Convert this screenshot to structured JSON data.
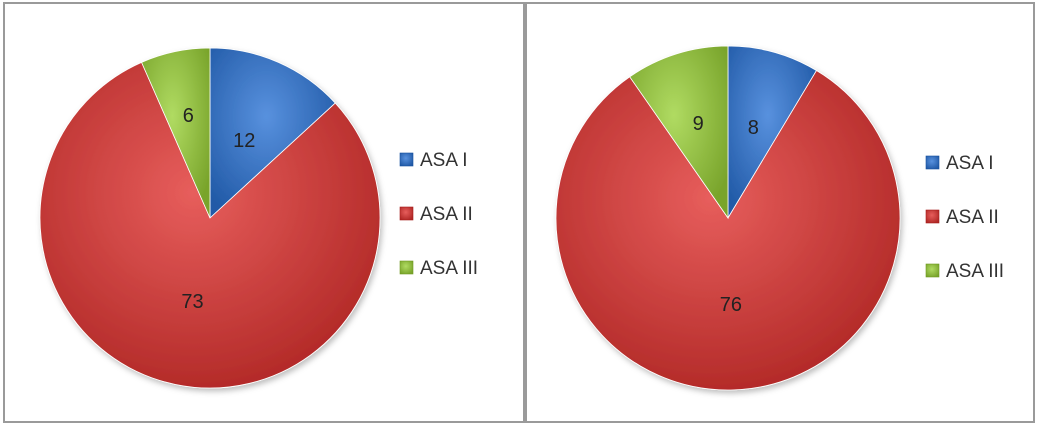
{
  "chart_data": [
    {
      "type": "pie",
      "title": "",
      "categories": [
        "ASA I",
        "ASA II",
        "ASA III"
      ],
      "values": [
        12,
        73,
        6
      ],
      "data_labels": [
        "12",
        "73",
        "6"
      ],
      "colors": [
        "#3a73c0",
        "#c9403e",
        "#92bd44"
      ],
      "legend_position": "right",
      "start_angle": "12 o'clock, clockwise"
    },
    {
      "type": "pie",
      "title": "",
      "categories": [
        "ASA I",
        "ASA II",
        "ASA III"
      ],
      "values": [
        8,
        76,
        9
      ],
      "data_labels": [
        "8",
        "76",
        "9"
      ],
      "colors": [
        "#3a73c0",
        "#c9403e",
        "#92bd44"
      ],
      "legend_position": "right",
      "start_angle": "12 o'clock, clockwise"
    }
  ]
}
